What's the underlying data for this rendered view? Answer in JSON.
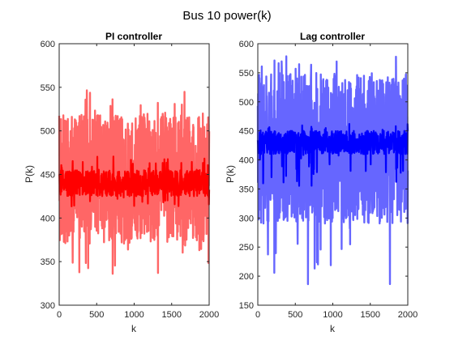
{
  "figure_title": "Bus 10 power(k)",
  "colors": {
    "pi_band": "#ff6666",
    "pi_core": "#ff0000",
    "lag_band": "#6666ff",
    "lag_core": "#0000ff",
    "axis": "#262626"
  },
  "chart_data": [
    {
      "type": "line",
      "title": "PI controller",
      "xlabel": "k",
      "ylabel": "P(k)",
      "xlim": [
        0,
        2000
      ],
      "ylim": [
        300,
        600
      ],
      "xticks": [
        0,
        500,
        1000,
        1500,
        2000
      ],
      "yticks": [
        300,
        350,
        400,
        450,
        500,
        550,
        600
      ],
      "grid": false,
      "series": [
        {
          "role": "noisy-band",
          "x_range": [
            0,
            2000
          ],
          "center": 440,
          "typical_range": [
            370,
            520
          ],
          "extreme_range": [
            335,
            550
          ],
          "color": "#ff6666"
        },
        {
          "role": "core",
          "x_range": [
            0,
            2000
          ],
          "center": 440,
          "typical_range": [
            425,
            455
          ],
          "extreme_range": [
            410,
            472
          ],
          "color": "#ff0000"
        }
      ]
    },
    {
      "type": "line",
      "title": "Lag controller",
      "xlabel": "k",
      "ylabel": "P(k)",
      "xlim": [
        0,
        2000
      ],
      "ylim": [
        150,
        600
      ],
      "xticks": [
        0,
        500,
        1000,
        1500,
        2000
      ],
      "yticks": [
        150,
        200,
        250,
        300,
        350,
        400,
        450,
        500,
        550,
        600
      ],
      "grid": false,
      "series": [
        {
          "role": "noisy-band",
          "x_range": [
            0,
            2000
          ],
          "center": 425,
          "typical_range": [
            290,
            550
          ],
          "extreme_range": [
            185,
            580
          ],
          "color": "#6666ff"
        },
        {
          "role": "core",
          "x_range": [
            0,
            2000
          ],
          "center": 428,
          "typical_range": [
            410,
            450
          ],
          "extreme_range": [
            355,
            465
          ],
          "color": "#0000ff"
        }
      ]
    }
  ]
}
